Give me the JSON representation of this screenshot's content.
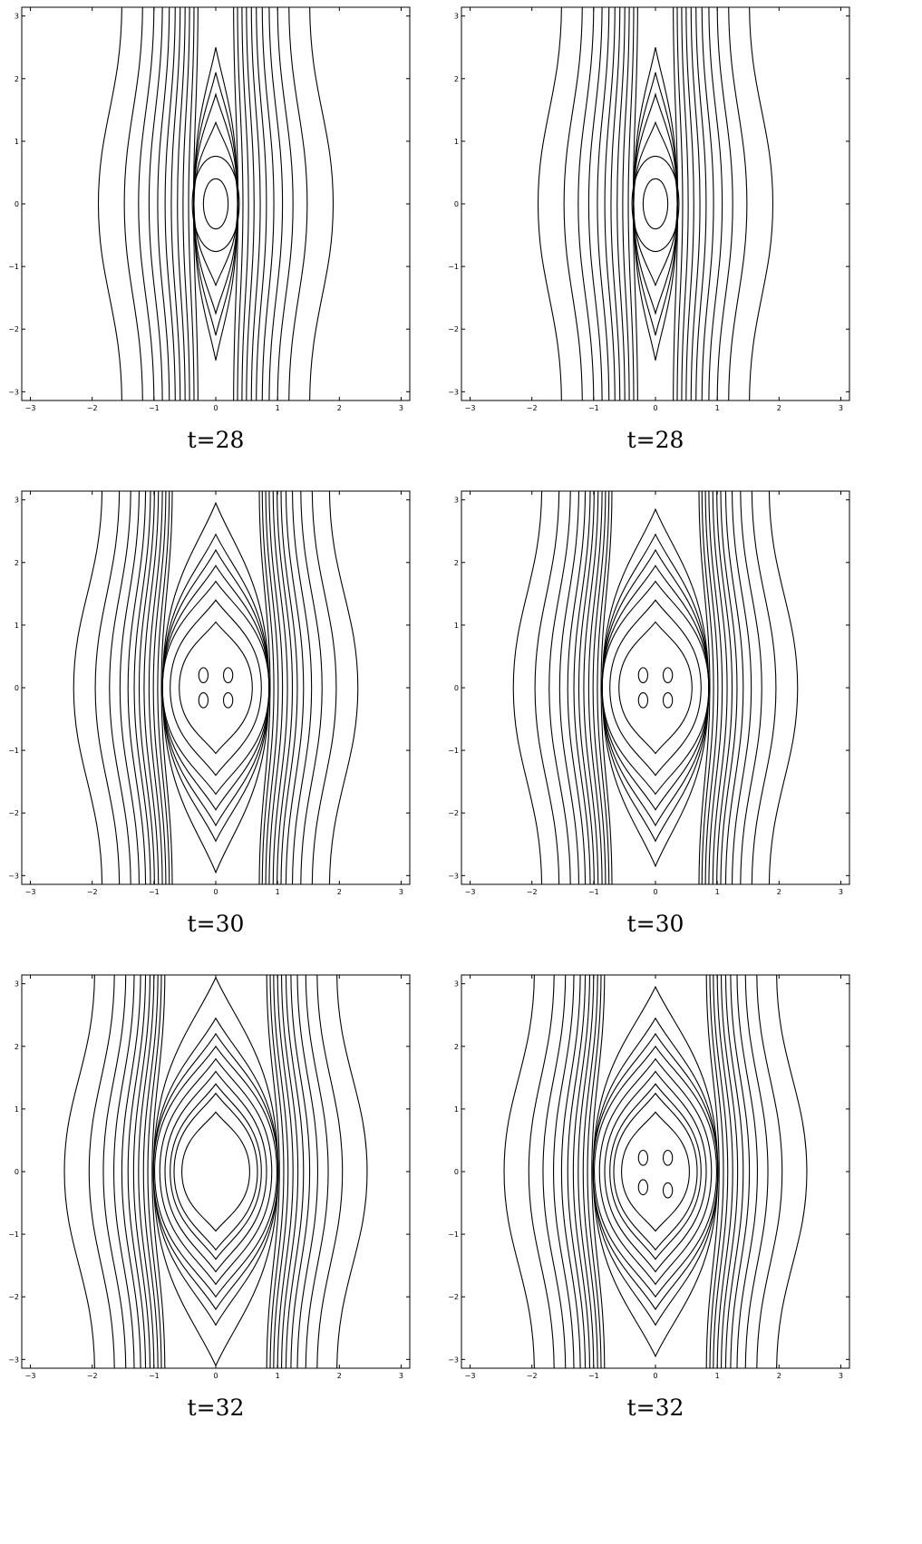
{
  "figure": {
    "background": "#ffffff",
    "line_color": "#000000"
  },
  "chart_data": [
    {
      "type": "contour",
      "caption": "t=28",
      "xlim": [
        -3.14,
        3.14
      ],
      "ylim": [
        -3.14,
        3.14
      ],
      "xticks": [
        "−3",
        "−2",
        "−1",
        "0",
        "1",
        "2",
        "3"
      ],
      "yticks": [
        "−3",
        "−2",
        "−1",
        "0",
        "1",
        "2",
        "3"
      ],
      "open_contour_x_at_y0": [
        1.9,
        1.48,
        1.25,
        1.08,
        0.94,
        0.82,
        0.72,
        0.62,
        0.53,
        0.44,
        0.36
      ],
      "closed_contour_half_heights": [
        2.5,
        2.1,
        1.75,
        1.3
      ],
      "center_contour_radii": [
        0.2,
        0.38
      ],
      "grid": false
    },
    {
      "type": "contour",
      "caption": "t=28",
      "xlim": [
        -3.14,
        3.14
      ],
      "ylim": [
        -3.14,
        3.14
      ],
      "xticks": [
        "−3",
        "−2",
        "−1",
        "0",
        "1",
        "2",
        "3"
      ],
      "yticks": [
        "−3",
        "−2",
        "−1",
        "0",
        "1",
        "2",
        "3"
      ],
      "open_contour_x_at_y0": [
        1.9,
        1.48,
        1.25,
        1.08,
        0.94,
        0.82,
        0.72,
        0.62,
        0.53,
        0.44,
        0.36
      ],
      "closed_contour_half_heights": [
        2.5,
        2.1,
        1.75,
        1.3
      ],
      "center_contour_radii": [
        0.2,
        0.38
      ],
      "grid": false
    },
    {
      "type": "contour",
      "caption": "t=30",
      "xlim": [
        -3.14,
        3.14
      ],
      "ylim": [
        -3.14,
        3.14
      ],
      "xticks": [
        "−3",
        "−2",
        "−1",
        "0",
        "1",
        "2",
        "3"
      ],
      "yticks": [
        "−3",
        "−2",
        "−1",
        "0",
        "1",
        "2",
        "3"
      ],
      "open_contour_x_at_y0": [
        2.3,
        1.95,
        1.72,
        1.55,
        1.42,
        1.32,
        1.24,
        1.16,
        1.08,
        1.01,
        0.94,
        0.88
      ],
      "closed_contour_half_heights": [
        2.95,
        2.45,
        2.2,
        1.95,
        1.7,
        1.4,
        1.05
      ],
      "center_islands": [
        [
          -0.2,
          0.2
        ],
        [
          0.2,
          0.2
        ],
        [
          -0.2,
          -0.2
        ],
        [
          0.2,
          -0.2
        ]
      ],
      "grid": false
    },
    {
      "type": "contour",
      "caption": "t=30",
      "xlim": [
        -3.14,
        3.14
      ],
      "ylim": [
        -3.14,
        3.14
      ],
      "xticks": [
        "−3",
        "−2",
        "−1",
        "0",
        "1",
        "2",
        "3"
      ],
      "yticks": [
        "−3",
        "−2",
        "−1",
        "0",
        "1",
        "2",
        "3"
      ],
      "open_contour_x_at_y0": [
        2.3,
        1.95,
        1.72,
        1.55,
        1.42,
        1.32,
        1.24,
        1.16,
        1.08,
        1.01,
        0.94,
        0.88
      ],
      "closed_contour_half_heights": [
        2.85,
        2.45,
        2.2,
        1.95,
        1.7,
        1.4,
        1.05
      ],
      "center_islands": [
        [
          -0.2,
          0.2
        ],
        [
          0.2,
          0.2
        ],
        [
          -0.2,
          -0.2
        ],
        [
          0.2,
          -0.2
        ]
      ],
      "grid": false
    },
    {
      "type": "contour",
      "caption": "t=32",
      "xlim": [
        -3.14,
        3.14
      ],
      "ylim": [
        -3.14,
        3.14
      ],
      "xticks": [
        "−3",
        "−2",
        "−1",
        "0",
        "1",
        "2",
        "3"
      ],
      "yticks": [
        "−3",
        "−2",
        "−1",
        "0",
        "1",
        "2",
        "3"
      ],
      "open_contour_x_at_y0": [
        2.45,
        2.05,
        1.82,
        1.65,
        1.52,
        1.42,
        1.33,
        1.25,
        1.17,
        1.1,
        1.03
      ],
      "closed_contour_half_heights": [
        3.1,
        2.45,
        2.2,
        2.0,
        1.8,
        1.6,
        1.4,
        1.25,
        0.95
      ],
      "center_islands": [],
      "grid": false
    },
    {
      "type": "contour",
      "caption": "t=32",
      "xlim": [
        -3.14,
        3.14
      ],
      "ylim": [
        -3.14,
        3.14
      ],
      "xticks": [
        "−3",
        "−2",
        "−1",
        "0",
        "1",
        "2",
        "3"
      ],
      "yticks": [
        "−3",
        "−2",
        "−1",
        "0",
        "1",
        "2",
        "3"
      ],
      "open_contour_x_at_y0": [
        2.45,
        2.05,
        1.82,
        1.65,
        1.52,
        1.42,
        1.33,
        1.25,
        1.17,
        1.1,
        1.03
      ],
      "closed_contour_half_heights": [
        2.95,
        2.45,
        2.2,
        2.0,
        1.8,
        1.6,
        1.4,
        1.25,
        0.95
      ],
      "center_islands": [
        [
          -0.2,
          0.22
        ],
        [
          0.2,
          0.22
        ],
        [
          -0.2,
          -0.25
        ],
        [
          0.2,
          -0.3
        ]
      ],
      "grid": false
    }
  ]
}
